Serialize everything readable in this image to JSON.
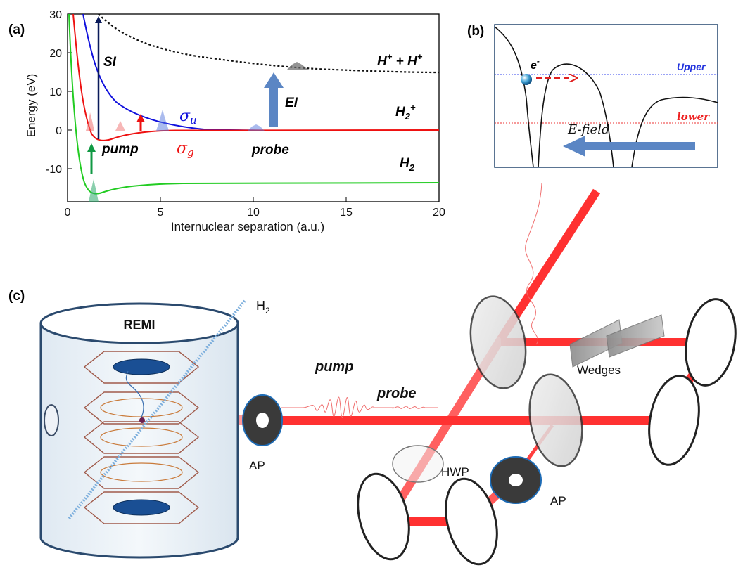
{
  "panels": {
    "a": "(a)",
    "b": "(b)",
    "c": "(c)"
  },
  "plot_a": {
    "ylabel": "Energy (eV)",
    "xlabel": "Internuclear separation (a.u.)",
    "x_ticks": [
      "0",
      "5",
      "10",
      "15",
      "20"
    ],
    "y_ticks": [
      "30",
      "20",
      "10",
      "0",
      "-10"
    ],
    "labels": {
      "si": "SI",
      "ei": "EI",
      "pump": "pump",
      "probe": "probe",
      "sigma_u": "σ",
      "sigma_u_sub": "u",
      "sigma_g": "σ",
      "sigma_g_sub": "g",
      "h2": "H",
      "h2_sub": "2",
      "h2plus": "H",
      "h2plus_sub": "2",
      "h2plus_sup": "+",
      "hh": "H",
      "hh_sup": "+",
      "hh_plus": " + H",
      "hh_sup2": "+"
    }
  },
  "panel_b": {
    "electron": "e",
    "electron_sup": "-",
    "upper": "Upper",
    "lower": "lower",
    "efield": "E-field"
  },
  "panel_c": {
    "remi": "REMI",
    "h2": "H",
    "h2_sub": "2",
    "pump": "pump",
    "probe": "probe",
    "ap_left": "AP",
    "ap_right": "AP",
    "hwp": "HWP",
    "wedges": "Wedges"
  },
  "colors": {
    "green": "#22cc22",
    "red": "#ee1111",
    "blue": "#1111dd",
    "dark_blue": "#0a1a5a",
    "arrow_blue": "#5b86c4",
    "beam": "#ff0000"
  }
}
